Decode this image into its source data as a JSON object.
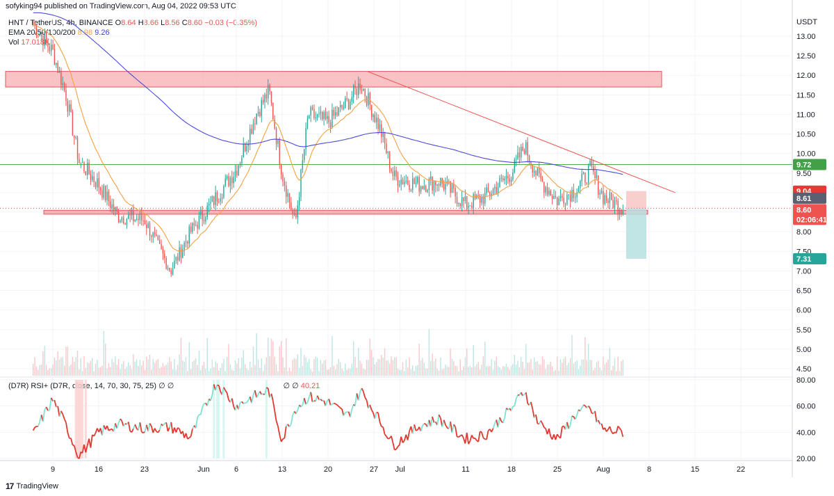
{
  "header": {
    "published": "sofyking94 published on TradingView.com, Aug 04, 2022 09:53 UTC"
  },
  "legend": {
    "symbol": "HNT / TetherUS, 4h, BINANCE",
    "o_label": "O",
    "o": "8.64",
    "h_label": "H",
    "h": "8.66",
    "l_label": "L",
    "l": "8.56",
    "c_label": "C",
    "c": "8.60",
    "change": "−0.03 (−0.35%)",
    "ema_label": "EMA 20/50/100/200",
    "ema_a": "8.98",
    "ema_b": "9.26",
    "vol_label": "Vol",
    "vol": "17.018K"
  },
  "rsi_legend": {
    "label": "(D7R) RSI+ (D7R, close, 14, 70, 30, 75, 25)",
    "flags": "∅ ∅",
    "flags2": "∅ ∅",
    "value": "40.21"
  },
  "price_axis": {
    "unit": "USDT",
    "ticks": [
      "13.00",
      "12.50",
      "12.00",
      "11.50",
      "11.00",
      "10.50",
      "10.00",
      "9.50",
      "9.00",
      "8.50",
      "8.00",
      "7.50",
      "7.00",
      "6.50",
      "6.00",
      "5.50",
      "5.00",
      "4.50"
    ],
    "badges": {
      "resistance": "9.72",
      "target_high": "9.04",
      "ema": "8.61",
      "last": "8.60",
      "countdown": "02:06:41",
      "target_low": "7.31"
    }
  },
  "rsi_axis": {
    "ticks": [
      "80.00",
      "60.00",
      "40.00",
      "20.00"
    ]
  },
  "time_axis": {
    "ticks": [
      "9",
      "16",
      "23",
      "Jun",
      "6",
      "13",
      "20",
      "27",
      "Jul",
      "11",
      "18",
      "25",
      "Aug",
      "8",
      "15",
      "22"
    ]
  },
  "brand": {
    "name": "TradingView",
    "logo": "17"
  },
  "colors": {
    "up": "#26a69a",
    "down": "#ef5350",
    "ema20": "#f5a042",
    "ema200": "#4b4bd6",
    "rsi_up": "#7de3d0",
    "rsi_down": "#e0392f",
    "zone": "#f7b3b6",
    "resistance": "#4caf50"
  },
  "chart_data": [
    {
      "type": "candlestick",
      "title": "HNT / TetherUS, 4h, BINANCE",
      "x_unit": "date (2022)",
      "ylim": [
        4.3,
        13.3
      ],
      "grid": true,
      "series": [
        {
          "name": "Close (approx.)",
          "x": [
            "May 6",
            "May 9",
            "May 11",
            "May 13",
            "May 16",
            "May 19",
            "May 23",
            "May 27",
            "May 30",
            "Jun 3",
            "Jun 6",
            "Jun 9",
            "Jun 11",
            "Jun 13",
            "Jun 15",
            "Jun 17",
            "Jun 20",
            "Jun 23",
            "Jun 25",
            "Jun 28",
            "Jun 30",
            "Jul 4",
            "Jul 7",
            "Jul 11",
            "Jul 14",
            "Jul 18",
            "Jul 20",
            "Jul 22",
            "Jul 25",
            "Jul 28",
            "Jul 30",
            "Aug 1",
            "Aug 4"
          ],
          "y": [
            13.3,
            12.6,
            11.5,
            9.8,
            9.2,
            8.4,
            8.3,
            7.0,
            8.0,
            8.9,
            9.6,
            11.0,
            11.6,
            9.5,
            8.2,
            11.0,
            10.8,
            11.3,
            11.8,
            10.6,
            9.4,
            9.2,
            9.3,
            8.7,
            8.9,
            9.5,
            10.2,
            9.4,
            8.8,
            9.1,
            9.6,
            8.9,
            8.6
          ]
        },
        {
          "name": "EMA 20",
          "last": 8.98
        },
        {
          "name": "EMA 200",
          "last": 9.26
        }
      ],
      "annotations": {
        "resistance_zone": [
          11.7,
          12.1
        ],
        "support_zone": [
          8.45,
          8.55
        ],
        "horizontal_line": 9.72,
        "downtrend_line": {
          "from": [
            "Jun 26",
            12.1
          ],
          "to": [
            "Aug 12",
            9.0
          ]
        },
        "target_high": 9.04,
        "target_low": 7.31,
        "last_price": 8.6
      }
    },
    {
      "type": "bar",
      "title": "Vol",
      "last": "17.018K"
    },
    {
      "type": "line",
      "title": "(D7R) RSI+ (D7R, close, 14, 70, 30, 75, 25)",
      "ylim": [
        18,
        82
      ],
      "series": [
        {
          "name": "RSI",
          "x": [
            "May 6",
            "May 9",
            "May 11",
            "May 13",
            "May 16",
            "May 19",
            "May 23",
            "May 27",
            "May 30",
            "Jun 3",
            "Jun 6",
            "Jun 9",
            "Jun 11",
            "Jun 13",
            "Jun 15",
            "Jun 17",
            "Jun 20",
            "Jun 23",
            "Jun 25",
            "Jun 28",
            "Jun 30",
            "Jul 4",
            "Jul 7",
            "Jul 11",
            "Jul 14",
            "Jul 18",
            "Jul 20",
            "Jul 22",
            "Jul 25",
            "Jul 28",
            "Jul 30",
            "Aug 1",
            "Aug 4"
          ],
          "y": [
            38,
            65,
            45,
            22,
            40,
            46,
            43,
            44,
            36,
            78,
            60,
            68,
            72,
            34,
            58,
            67,
            63,
            52,
            72,
            48,
            30,
            45,
            50,
            35,
            38,
            58,
            72,
            48,
            35,
            55,
            58,
            42,
            40.21
          ]
        }
      ]
    }
  ]
}
